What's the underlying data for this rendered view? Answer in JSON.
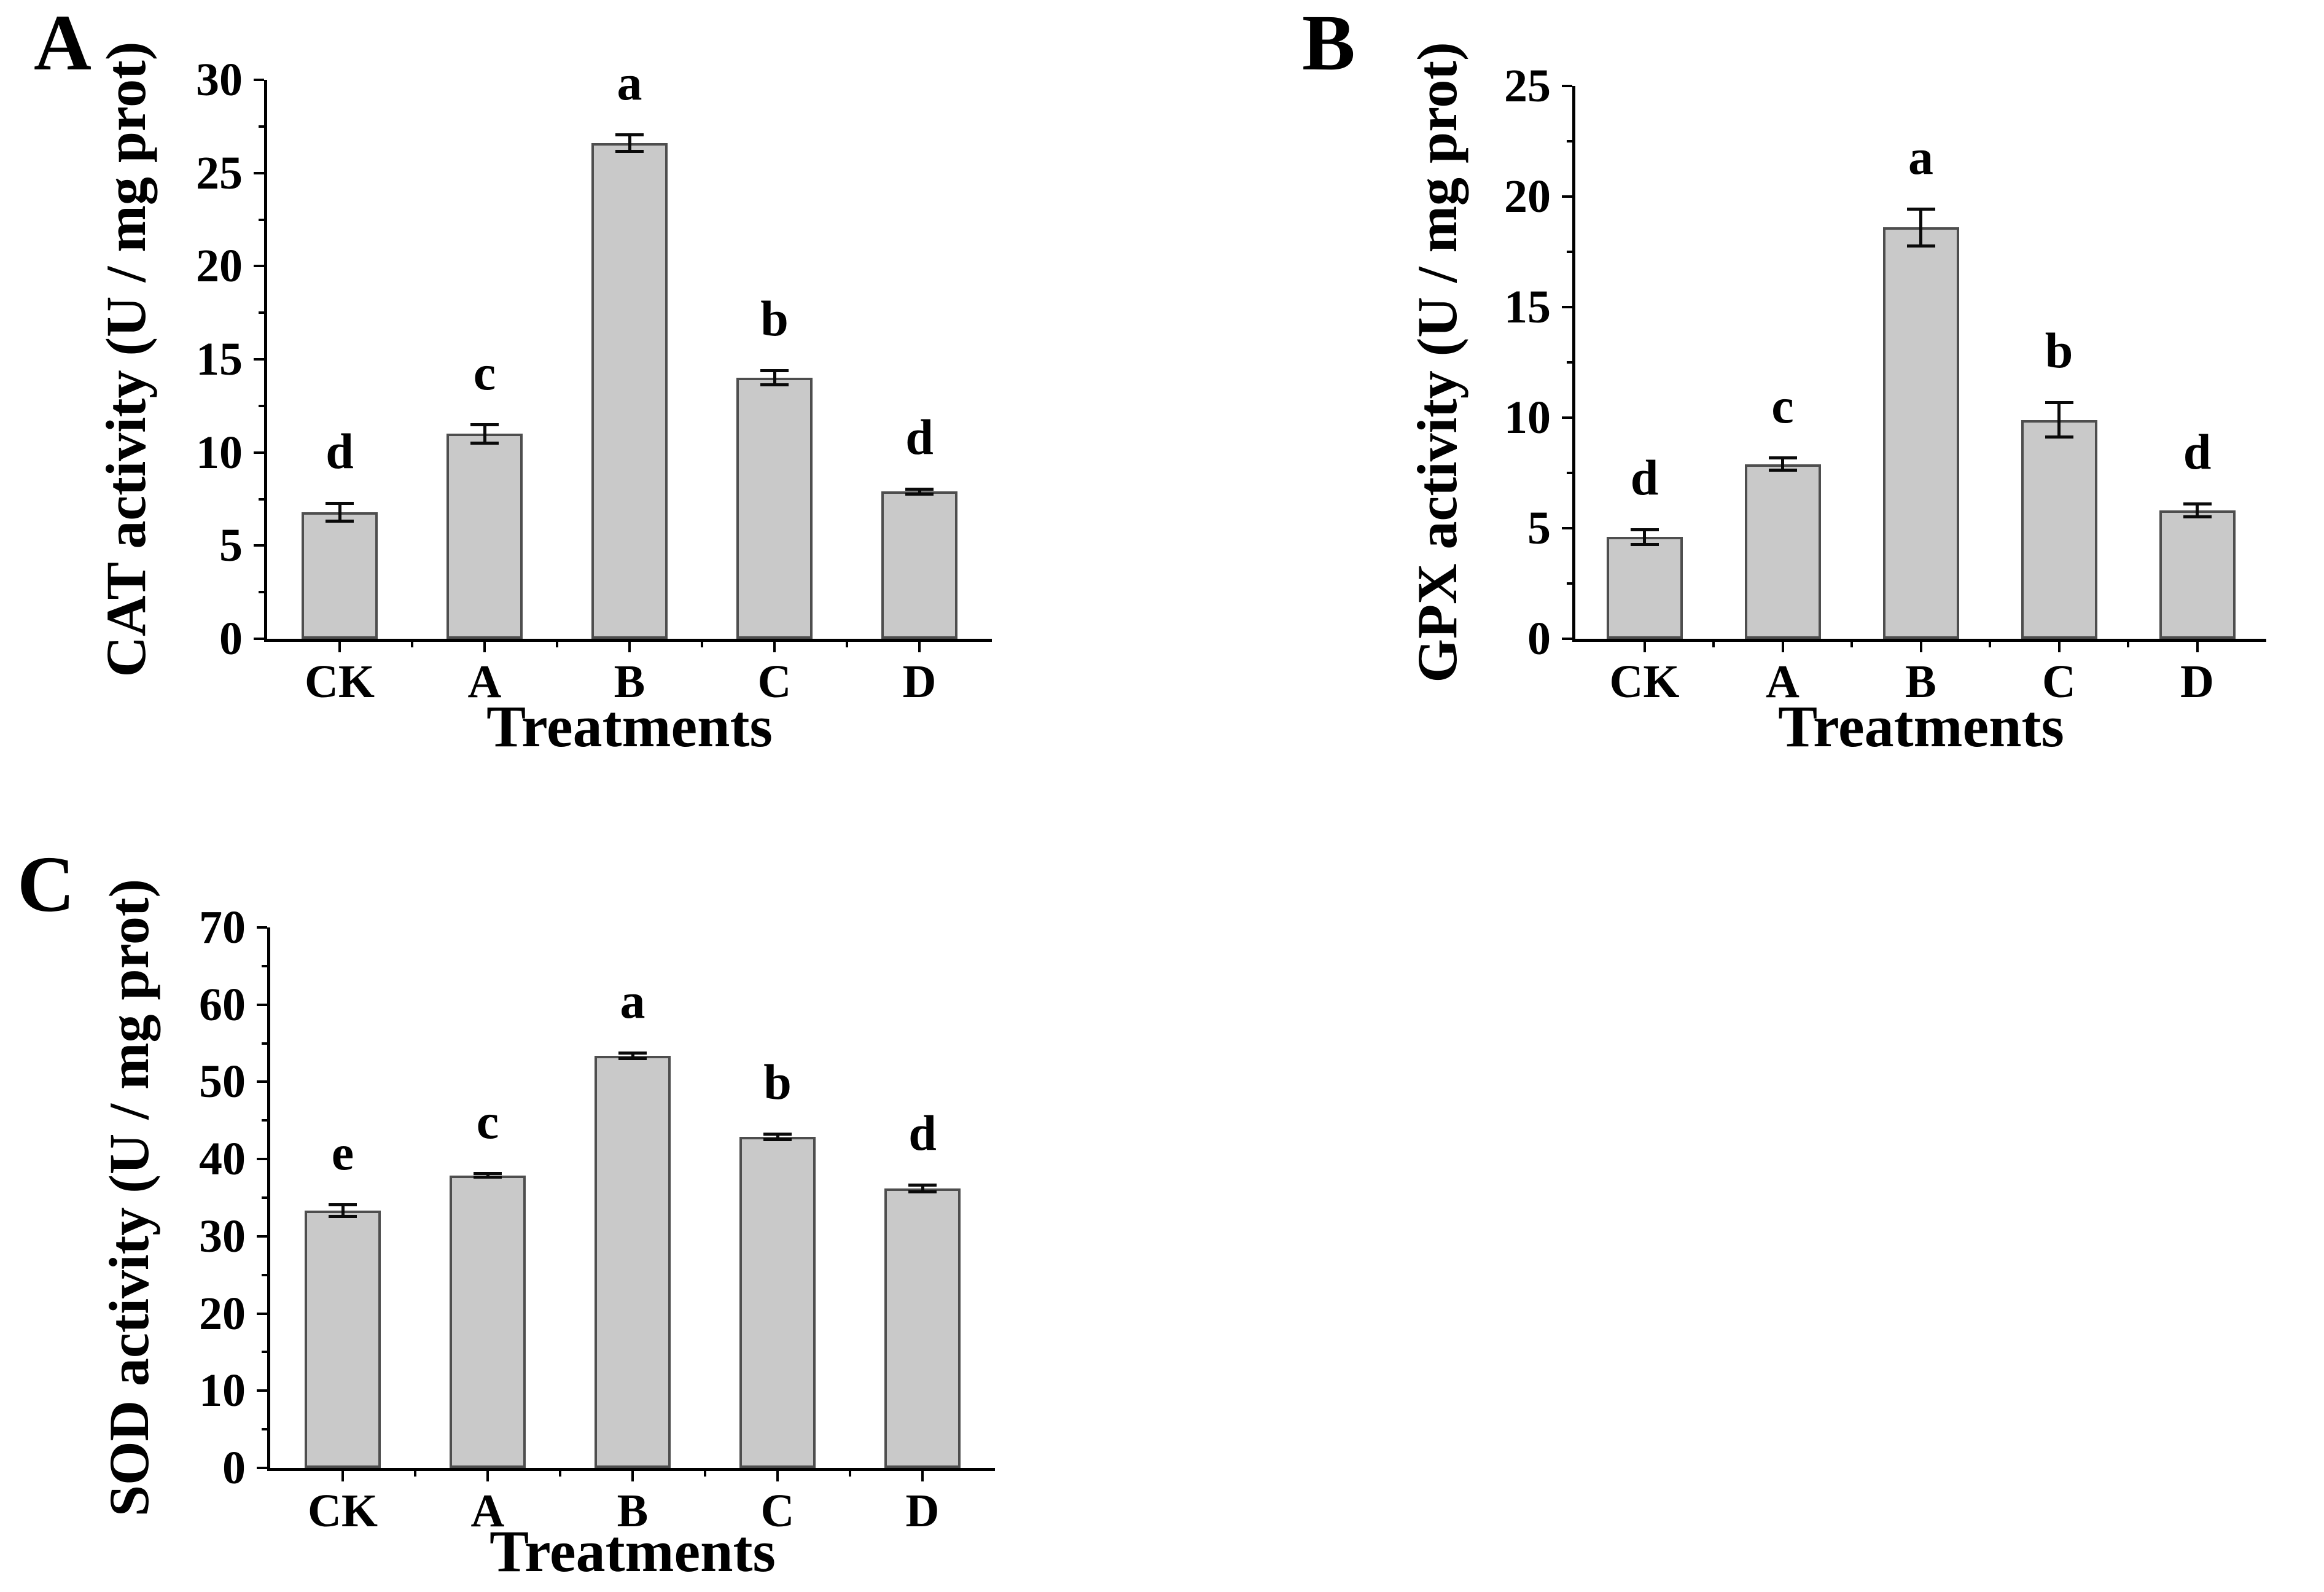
{
  "figure": {
    "background": "#ffffff",
    "text_color": "#000000",
    "axis_color": "#000000",
    "error_bar_color": "#0a0a0a"
  },
  "chart_data": [
    {
      "panel_label": "A",
      "type": "bar",
      "title": "",
      "xlabel": "Treatments",
      "ylabel": "CAT activity (U / mg prot)",
      "categories": [
        "CK",
        "A",
        "B",
        "C",
        "D"
      ],
      "values": [
        6.8,
        11.0,
        26.6,
        14.0,
        7.9
      ],
      "errors": [
        0.5,
        0.5,
        0.45,
        0.4,
        0.15
      ],
      "sig_letters": [
        "d",
        "c",
        "a",
        "b",
        "d"
      ],
      "ylim": [
        0,
        30
      ],
      "yticks": [
        0,
        5,
        10,
        15,
        20,
        25,
        30
      ],
      "yticks_minor": [
        2.5,
        7.5,
        12.5,
        17.5,
        22.5,
        27.5
      ],
      "grid": false,
      "legend": "none",
      "bar_color": "#c9c9c9",
      "bar_border_color": "#4e4e4e"
    },
    {
      "panel_label": "B",
      "type": "bar",
      "title": "",
      "xlabel": "Treatments",
      "ylabel": "GPX activity (U / mg prot)",
      "categories": [
        "CK",
        "A",
        "B",
        "C",
        "D"
      ],
      "values": [
        4.6,
        7.9,
        18.6,
        9.9,
        5.8
      ],
      "errors": [
        0.35,
        0.3,
        0.85,
        0.8,
        0.3
      ],
      "sig_letters": [
        "d",
        "c",
        "a",
        "b",
        "d"
      ],
      "ylim": [
        0,
        25
      ],
      "yticks": [
        0,
        5,
        10,
        15,
        20,
        25
      ],
      "yticks_minor": [
        2.5,
        7.5,
        12.5,
        17.5,
        22.5
      ],
      "grid": false,
      "legend": "none",
      "bar_color": "#c9c9c9",
      "bar_border_color": "#4e4e4e"
    },
    {
      "panel_label": "C",
      "type": "bar",
      "title": "",
      "xlabel": "Treatments",
      "ylabel": "SOD activity (U / mg prot)",
      "categories": [
        "CK",
        "A",
        "B",
        "C",
        "D"
      ],
      "values": [
        33.3,
        37.9,
        53.4,
        42.9,
        36.2
      ],
      "errors": [
        0.8,
        0.25,
        0.4,
        0.4,
        0.5
      ],
      "sig_letters": [
        "e",
        "c",
        "a",
        "b",
        "d"
      ],
      "ylim": [
        0,
        70
      ],
      "yticks": [
        0,
        10,
        20,
        30,
        40,
        50,
        60,
        70
      ],
      "yticks_minor": [
        5,
        15,
        25,
        35,
        45,
        55,
        65
      ],
      "grid": false,
      "legend": "none",
      "bar_color": "#c9c9c9",
      "bar_border_color": "#4e4e4e"
    }
  ]
}
